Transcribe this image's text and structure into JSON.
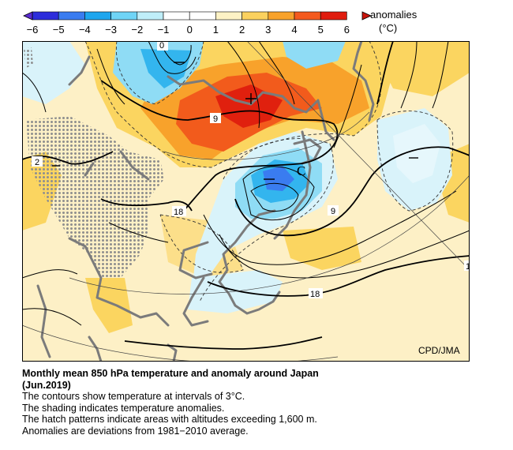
{
  "colorbar": {
    "title": "anomalies",
    "unit": "(°C)",
    "ticks": [
      "−6",
      "−5",
      "−4",
      "−3",
      "−2",
      "−1",
      "0",
      "1",
      "2",
      "3",
      "4",
      "5",
      "6"
    ],
    "colors": [
      "#2d2ddb",
      "#3a7cf0",
      "#1ea6ee",
      "#6fd4f6",
      "#bfeef9",
      "#ffffff",
      "#ffffff",
      "#fdf2c5",
      "#fbd15e",
      "#f8a22b",
      "#f45a1e",
      "#e01c0e"
    ]
  },
  "map": {
    "credit": "CPD/JMA",
    "contour_labels": {
      "c0": "0",
      "c9a": "9",
      "c9b": "9",
      "c18a": "18",
      "c18b": "18",
      "c2": "2",
      "c1": "1"
    },
    "center_cold": "C",
    "colors": {
      "base": "#fdf0c6",
      "warm1": "#fbd560",
      "warm2": "#f8a22b",
      "warm3": "#f25b1c",
      "warm4": "#e0200e",
      "cool1": "#d9f3fa",
      "cool2": "#8fdcf5",
      "cool3": "#33b5ee",
      "cool4": "#3a7cf0",
      "coast": "#7b7b7b",
      "hatch": "#8e8e8e"
    }
  },
  "caption": {
    "title": "Monthly mean 850 hPa temperature and anomaly around Japan",
    "period": "(Jun.2019)",
    "line1": "The contours show temperature at intervals of 3°C.",
    "line2": "The shading indicates temperature anomalies.",
    "line3": "The hatch patterns indicate areas with altitudes exceeding 1,600 m.",
    "line4": "Anomalies are deviations from 1981−2010 average."
  }
}
